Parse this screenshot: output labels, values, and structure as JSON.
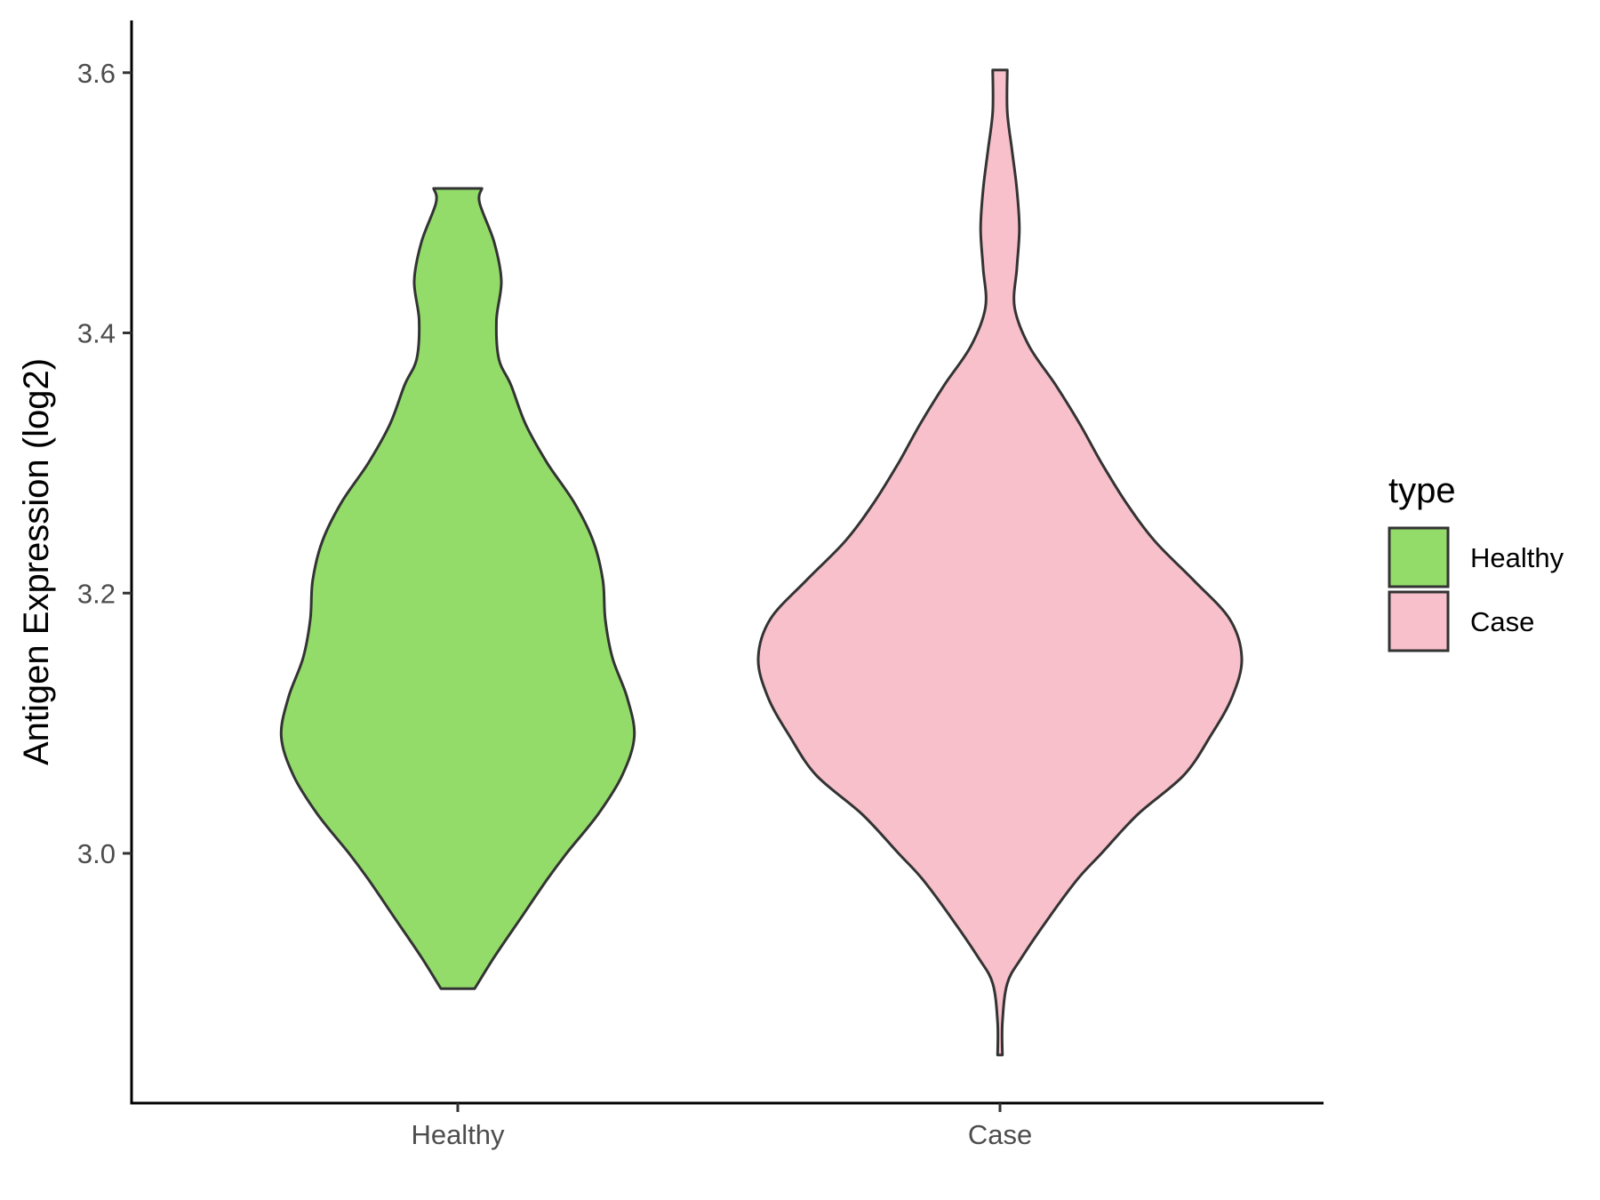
{
  "chart_data": {
    "type": "violin",
    "xlabel": "",
    "ylabel": "Antigen Expression (log2)",
    "categories": [
      "Healthy",
      "Case"
    ],
    "ylim": [
      2.83,
      3.64
    ],
    "yticks": [
      3.0,
      3.2,
      3.4,
      3.6
    ],
    "ytick_labels": [
      "3.0",
      "3.2",
      "3.4",
      "3.6"
    ],
    "legend": {
      "title": "type",
      "position": "right",
      "entries": [
        "Healthy",
        "Case"
      ]
    },
    "colors": {
      "Healthy": "#93DC6A",
      "Case": "#F7C0CB"
    },
    "grid": false,
    "series": [
      {
        "name": "Healthy",
        "range": [
          2.896,
          3.511
        ],
        "density_profile": [
          [
            2.896,
            0.07
          ],
          [
            2.92,
            0.15
          ],
          [
            2.95,
            0.26
          ],
          [
            2.98,
            0.37
          ],
          [
            3.0,
            0.45
          ],
          [
            3.03,
            0.58
          ],
          [
            3.06,
            0.68
          ],
          [
            3.09,
            0.73
          ],
          [
            3.12,
            0.7
          ],
          [
            3.15,
            0.64
          ],
          [
            3.18,
            0.61
          ],
          [
            3.21,
            0.6
          ],
          [
            3.24,
            0.56
          ],
          [
            3.27,
            0.48
          ],
          [
            3.3,
            0.37
          ],
          [
            3.33,
            0.28
          ],
          [
            3.36,
            0.22
          ],
          [
            3.38,
            0.17
          ],
          [
            3.41,
            0.16
          ],
          [
            3.44,
            0.18
          ],
          [
            3.47,
            0.15
          ],
          [
            3.5,
            0.09
          ],
          [
            3.511,
            0.1
          ]
        ]
      },
      {
        "name": "Case",
        "range": [
          2.845,
          3.602
        ],
        "density_profile": [
          [
            2.845,
            0.01
          ],
          [
            2.87,
            0.01
          ],
          [
            2.9,
            0.03
          ],
          [
            2.92,
            0.09
          ],
          [
            2.95,
            0.2
          ],
          [
            2.98,
            0.32
          ],
          [
            3.0,
            0.42
          ],
          [
            3.03,
            0.57
          ],
          [
            3.06,
            0.76
          ],
          [
            3.09,
            0.87
          ],
          [
            3.12,
            0.96
          ],
          [
            3.15,
            1.0
          ],
          [
            3.18,
            0.95
          ],
          [
            3.21,
            0.8
          ],
          [
            3.24,
            0.64
          ],
          [
            3.27,
            0.52
          ],
          [
            3.3,
            0.42
          ],
          [
            3.33,
            0.33
          ],
          [
            3.36,
            0.23
          ],
          [
            3.39,
            0.12
          ],
          [
            3.42,
            0.06
          ],
          [
            3.45,
            0.07
          ],
          [
            3.48,
            0.08
          ],
          [
            3.51,
            0.07
          ],
          [
            3.54,
            0.05
          ],
          [
            3.57,
            0.03
          ],
          [
            3.602,
            0.03
          ]
        ]
      }
    ]
  }
}
